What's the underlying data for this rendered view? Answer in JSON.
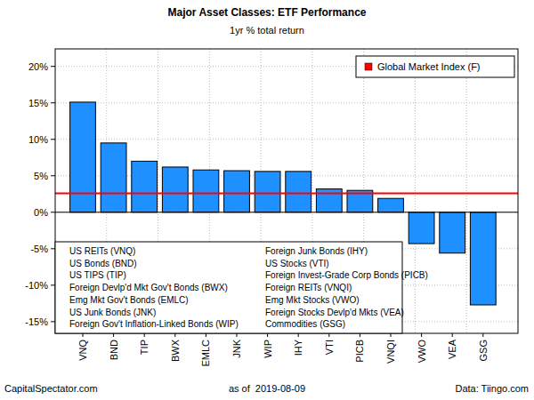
{
  "chart_data": {
    "type": "bar",
    "title": "Major Asset Classes: ETF Performance",
    "subtitle": "1yr % total return",
    "categories": [
      "VNQ",
      "BND",
      "TIP",
      "BWX",
      "EMLC",
      "JNK",
      "WIP",
      "IHY",
      "VTI",
      "PICB",
      "VNQI",
      "VWO",
      "VEA",
      "GSG"
    ],
    "category_names": [
      "US REITs (VNQ)",
      "US Bonds (BND)",
      "US TIPS (TIP)",
      "Foreign Devlp'd Mkt Gov't Bonds (BWX)",
      "Emg Mkt Gov't Bonds (EMLC)",
      "US Junk Bonds (JNK)",
      "Foreign Gov't Inflation-Linked Bonds (WIP)",
      "Foreign Junk Bonds (IHY)",
      "US Stocks (VTI)",
      "Foreign Invest-Grade Corp Bonds (PICB)",
      "Foreign REITs (VNQI)",
      "Emg Mkt Stocks (VWO)",
      "Foreign Stocks Devlp'd Mkts (VEA)",
      "Commodities (GSG)"
    ],
    "values": [
      15.1,
      9.5,
      7.0,
      6.2,
      5.8,
      5.7,
      5.6,
      5.6,
      3.2,
      3.0,
      1.9,
      -4.3,
      -5.6,
      -12.7
    ],
    "color": "#1e90ff",
    "reference_line": {
      "name": "Global Market Index (F)",
      "value": 2.6
    },
    "ylim": [
      -16.6,
      22.4
    ],
    "yticks": [
      {
        "value": -15,
        "label": "-15%"
      },
      {
        "value": -10,
        "label": "-10%"
      },
      {
        "value": -5,
        "label": "-5%"
      },
      {
        "value": 0,
        "label": "0%"
      },
      {
        "value": 5,
        "label": "5%"
      },
      {
        "value": 10,
        "label": "10%"
      },
      {
        "value": 15,
        "label": "15%"
      },
      {
        "value": 20,
        "label": "20%"
      }
    ],
    "grid": true,
    "legend": "top-right",
    "source": "CapitalSpectator.com",
    "date_note": "as of  2019-08-09",
    "data_source": "Data: Tiingo.com"
  }
}
